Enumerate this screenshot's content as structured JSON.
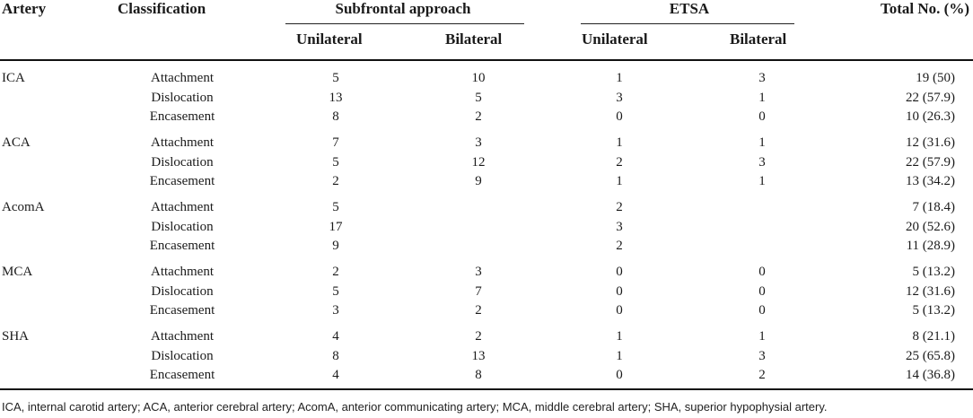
{
  "headers": {
    "artery": "Artery",
    "classification": "Classification",
    "subfrontal": "Subfrontal approach",
    "etsa": "ETSA",
    "total": "Total No. (%)",
    "unilateral": "Unilateral",
    "bilateral": "Bilateral"
  },
  "groups": [
    {
      "artery": "ICA",
      "rows": [
        {
          "cls": "Attachment",
          "su": "5",
          "sb": "10",
          "eu": "1",
          "eb": "3",
          "total": "19 (50)"
        },
        {
          "cls": "Dislocation",
          "su": "13",
          "sb": "5",
          "eu": "3",
          "eb": "1",
          "total": "22 (57.9)"
        },
        {
          "cls": "Encasement",
          "su": "8",
          "sb": "2",
          "eu": "0",
          "eb": "0",
          "total": "10 (26.3)"
        }
      ]
    },
    {
      "artery": "ACA",
      "rows": [
        {
          "cls": "Attachment",
          "su": "7",
          "sb": "3",
          "eu": "1",
          "eb": "1",
          "total": "12 (31.6)"
        },
        {
          "cls": "Dislocation",
          "su": "5",
          "sb": "12",
          "eu": "2",
          "eb": "3",
          "total": "22 (57.9)"
        },
        {
          "cls": "Encasement",
          "su": "2",
          "sb": "9",
          "eu": "1",
          "eb": "1",
          "total": "13 (34.2)"
        }
      ]
    },
    {
      "artery": "AcomA",
      "rows": [
        {
          "cls": "Attachment",
          "su": "5",
          "sb": "",
          "eu": "2",
          "eb": "",
          "total": "7 (18.4)"
        },
        {
          "cls": "Dislocation",
          "su": "17",
          "sb": "",
          "eu": "3",
          "eb": "",
          "total": "20 (52.6)"
        },
        {
          "cls": "Encasement",
          "su": "9",
          "sb": "",
          "eu": "2",
          "eb": "",
          "total": "11 (28.9)"
        }
      ]
    },
    {
      "artery": "MCA",
      "rows": [
        {
          "cls": "Attachment",
          "su": "2",
          "sb": "3",
          "eu": "0",
          "eb": "0",
          "total": "5 (13.2)"
        },
        {
          "cls": "Dislocation",
          "su": "5",
          "sb": "7",
          "eu": "0",
          "eb": "0",
          "total": "12 (31.6)"
        },
        {
          "cls": "Encasement",
          "su": "3",
          "sb": "2",
          "eu": "0",
          "eb": "0",
          "total": "5 (13.2)"
        }
      ]
    },
    {
      "artery": "SHA",
      "rows": [
        {
          "cls": "Attachment",
          "su": "4",
          "sb": "2",
          "eu": "1",
          "eb": "1",
          "total": "8 (21.1)"
        },
        {
          "cls": "Dislocation",
          "su": "8",
          "sb": "13",
          "eu": "1",
          "eb": "3",
          "total": "25 (65.8)"
        },
        {
          "cls": "Encasement",
          "su": "4",
          "sb": "8",
          "eu": "0",
          "eb": "2",
          "total": "14 (36.8)"
        }
      ]
    }
  ],
  "footnote": "ICA, internal carotid artery; ACA, anterior cerebral artery; AcomA, anterior communicating artery; MCA, middle cerebral artery; SHA, superior hypophysial artery."
}
